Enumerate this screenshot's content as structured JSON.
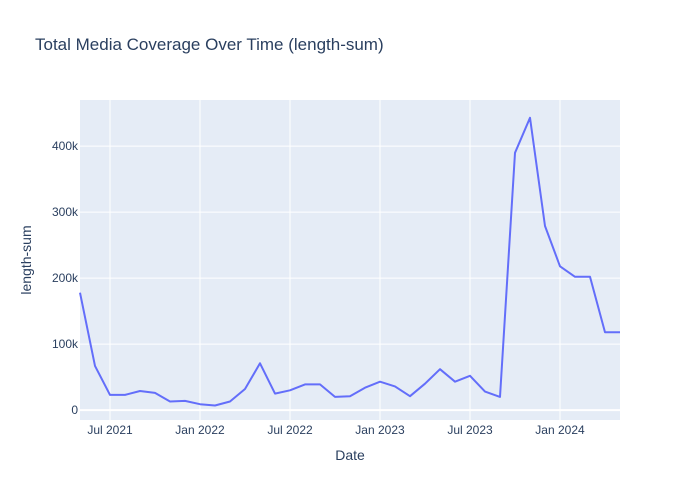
{
  "chart_data": {
    "type": "line",
    "title": "Total Media Coverage Over Time (length-sum)",
    "xlabel": "Date",
    "ylabel": "length-sum",
    "xlim": [
      "2021-05-01",
      "2024-05-01"
    ],
    "ylim": [
      -15000,
      470000
    ],
    "x_ticks": [
      "Jul 2021",
      "Jan 2022",
      "Jul 2022",
      "Jan 2023",
      "Jul 2023",
      "Jan 2024"
    ],
    "y_ticks": [
      "0",
      "100k",
      "200k",
      "300k",
      "400k"
    ],
    "grid": true,
    "legend": "none",
    "colors": {
      "line": "#636efa",
      "plot_bg": "#e5ecf6",
      "grid": "#ffffff",
      "text": "#2a3f5f"
    },
    "series": [
      {
        "x": [
          "2021-05",
          "2021-06",
          "2021-07",
          "2021-08",
          "2021-09",
          "2021-10",
          "2021-11",
          "2021-12",
          "2022-01",
          "2022-02",
          "2022-03",
          "2022-04",
          "2022-05",
          "2022-06",
          "2022-07",
          "2022-08",
          "2022-09",
          "2022-10",
          "2022-11",
          "2022-12",
          "2023-01",
          "2023-02",
          "2023-03",
          "2023-04",
          "2023-05",
          "2023-06",
          "2023-07",
          "2023-08",
          "2023-09",
          "2023-10",
          "2023-11",
          "2023-12",
          "2024-01",
          "2024-02",
          "2024-03",
          "2024-04",
          "2024-05"
        ],
        "values": [
          178000,
          67000,
          23000,
          23000,
          29000,
          26000,
          13000,
          14000,
          9000,
          7000,
          13000,
          32000,
          71000,
          25000,
          30000,
          39000,
          39000,
          20000,
          21000,
          34000,
          43000,
          36000,
          21000,
          40000,
          62000,
          43000,
          52000,
          28000,
          20000,
          390000,
          443000,
          279000,
          218000,
          202000,
          202000,
          118000,
          118000
        ]
      }
    ]
  }
}
